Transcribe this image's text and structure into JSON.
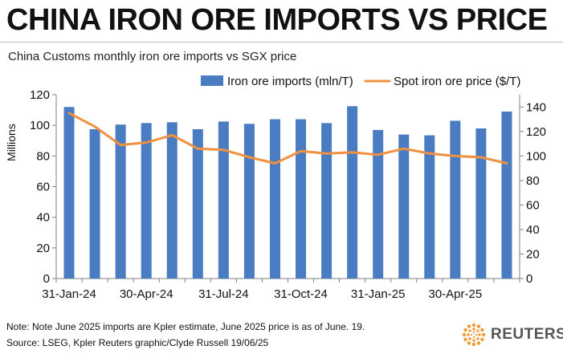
{
  "header": {
    "title": "CHINA IRON ORE IMPORTS VS PRICE",
    "subtitle": "China Customs monthly iron ore imports vs SGX price"
  },
  "footer": {
    "note": "Note: Note June 2025 imports are Kpler estimate, June 2025 price is as of June. 19.",
    "source": "Source: LSEG, Kpler    Reuters graphic/Clyde Russell 19/06/25",
    "logo_text": "REUTERS"
  },
  "colors": {
    "bars": "#4a7cc1",
    "line": "#f0913f",
    "axis": "#808080",
    "logo": "#f29b32"
  },
  "chart_data": {
    "type": "bar+line",
    "ylabel_left": "Millions",
    "ylim_left": [
      0,
      120
    ],
    "yticks_left": [
      "0",
      "20",
      "40",
      "60",
      "80",
      "100",
      "120"
    ],
    "ylim_right": [
      0,
      150
    ],
    "yticks_right": [
      "0",
      "20",
      "40",
      "60",
      "80",
      "100",
      "120",
      "140"
    ],
    "x_tick_labels": [
      {
        "index": 0,
        "label": "31-Jan-24"
      },
      {
        "index": 3,
        "label": "30-Apr-24"
      },
      {
        "index": 6,
        "label": "31-Jul-24"
      },
      {
        "index": 9,
        "label": "31-Oct-24"
      },
      {
        "index": 12,
        "label": "31-Jan-25"
      },
      {
        "index": 15,
        "label": "30-Apr-25"
      }
    ],
    "legend_placement": "top",
    "series": [
      {
        "name": "Iron ore imports (mln/T)",
        "type": "bar",
        "axis": "left",
        "values": [
          112,
          97.5,
          100.5,
          101.5,
          102,
          97.5,
          102.5,
          101,
          104,
          104,
          101.5,
          112.5,
          97,
          94,
          93.5,
          103,
          98,
          109
        ]
      },
      {
        "name": "Spot iron ore price ($/T)",
        "type": "line",
        "axis": "right",
        "values": [
          135,
          124,
          109,
          111,
          117,
          106,
          105,
          99,
          94,
          104,
          102,
          103,
          101,
          106,
          102,
          100,
          99,
          94
        ]
      }
    ]
  }
}
